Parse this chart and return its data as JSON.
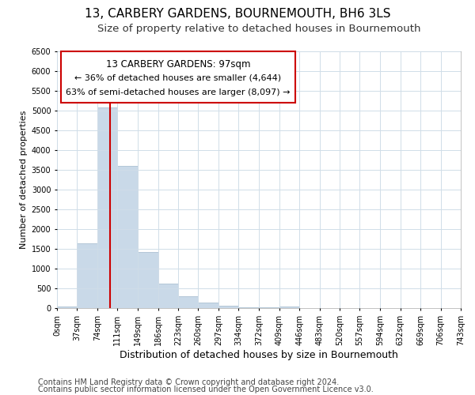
{
  "title": "13, CARBERY GARDENS, BOURNEMOUTH, BH6 3LS",
  "subtitle": "Size of property relative to detached houses in Bournemouth",
  "xlabel": "Distribution of detached houses by size in Bournemouth",
  "ylabel": "Number of detached properties",
  "footer_line1": "Contains HM Land Registry data © Crown copyright and database right 2024.",
  "footer_line2": "Contains public sector information licensed under the Open Government Licence v3.0.",
  "annotation_line1": "13 CARBERY GARDENS: 97sqm",
  "annotation_line2": "← 36% of detached houses are smaller (4,644)",
  "annotation_line3": "63% of semi-detached houses are larger (8,097) →",
  "bar_edges": [
    0,
    37,
    74,
    111,
    149,
    186,
    223,
    260,
    297,
    334,
    372,
    409,
    446,
    483,
    520,
    557,
    594,
    632,
    669,
    706,
    743
  ],
  "bar_heights": [
    50,
    1650,
    5080,
    3600,
    1430,
    615,
    300,
    150,
    70,
    30,
    20,
    50,
    0,
    0,
    0,
    0,
    0,
    0,
    0,
    0
  ],
  "bar_color": "#c9d9e8",
  "bar_edge_color": "#a0b8cc",
  "redline_x": 97,
  "ylim": [
    0,
    6500
  ],
  "yticks": [
    0,
    500,
    1000,
    1500,
    2000,
    2500,
    3000,
    3500,
    4000,
    4500,
    5000,
    5500,
    6000,
    6500
  ],
  "annotation_box_color": "#ffffff",
  "annotation_box_edge": "#cc0000",
  "redline_color": "#cc0000",
  "background_color": "#ffffff",
  "grid_color": "#d0dde8",
  "title_fontsize": 11,
  "subtitle_fontsize": 9.5,
  "xlabel_fontsize": 9,
  "ylabel_fontsize": 8,
  "tick_fontsize": 7,
  "footer_fontsize": 7,
  "annotation_title_fontsize": 8.5,
  "annotation_text_fontsize": 8
}
